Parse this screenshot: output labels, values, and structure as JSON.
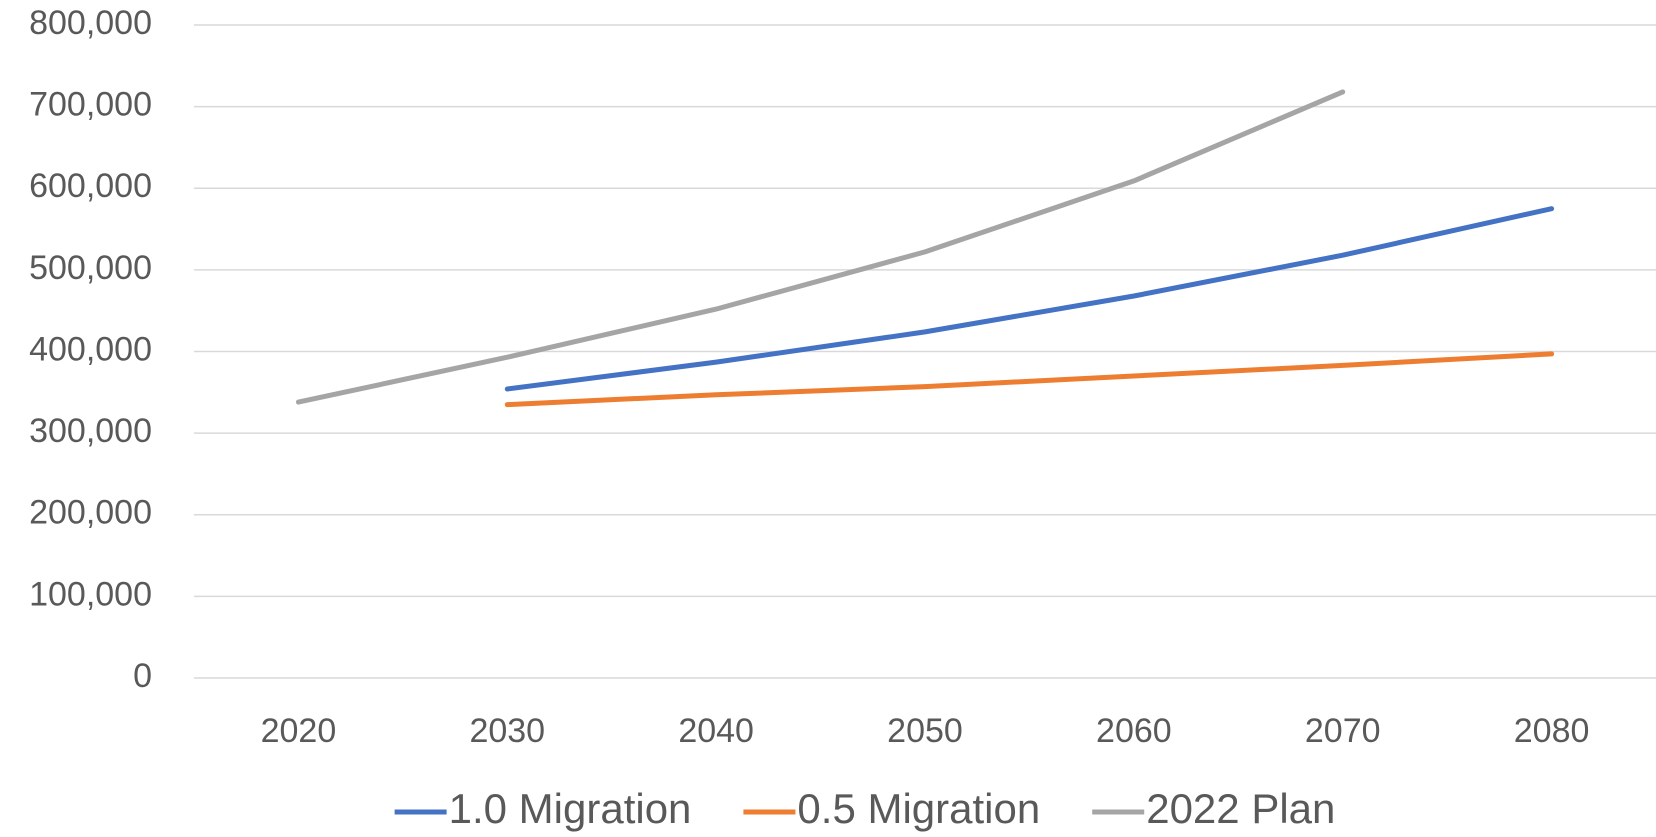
{
  "chart_data": {
    "type": "line",
    "categories": [
      "2020",
      "2030",
      "2040",
      "2050",
      "2060",
      "2070",
      "2080"
    ],
    "series": [
      {
        "name": "1.0 Migration",
        "color": "#4472c4",
        "values": [
          null,
          354000,
          387000,
          424000,
          468000,
          518000,
          575000
        ]
      },
      {
        "name": "0.5 Migration",
        "color": "#ed7d31",
        "values": [
          null,
          335000,
          347000,
          357000,
          370000,
          383000,
          397000
        ]
      },
      {
        "name": "2022 Plan",
        "color": "#a5a5a5",
        "values": [
          338000,
          393000,
          452000,
          522000,
          609000,
          718000,
          null
        ]
      }
    ],
    "ylim": [
      0,
      800000
    ],
    "yticks": [
      0,
      {
        "value": 100000,
        "label": "100,000"
      },
      {
        "value": 200000,
        "label": "200,000"
      },
      {
        "value": 300000,
        "label": "300,000"
      },
      {
        "value": 400000,
        "label": "400,000"
      },
      {
        "value": 500000,
        "label": "500,000"
      },
      {
        "value": 600000,
        "label": "600,000"
      },
      {
        "value": 700000,
        "label": "700,000"
      },
      {
        "value": 800000,
        "label": "800,000"
      }
    ],
    "grid": true,
    "legend": "bottom"
  }
}
